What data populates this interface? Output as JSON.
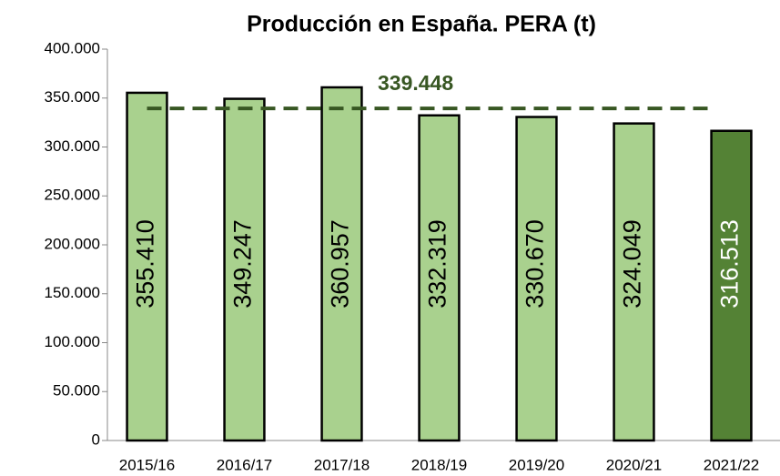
{
  "chart_data": {
    "type": "bar",
    "title": "Producción en España. PERA (t)",
    "categories": [
      "2015/16",
      "2016/17",
      "2017/18",
      "2018/19",
      "2019/20",
      "2020/21",
      "2021/22"
    ],
    "values": [
      355410,
      349247,
      360957,
      332319,
      330670,
      324049,
      316513
    ],
    "value_labels": [
      "355.410",
      "349.247",
      "360.957",
      "332.319",
      "330.670",
      "324.049",
      "316.513"
    ],
    "colors": [
      "#a9d18e",
      "#a9d18e",
      "#a9d18e",
      "#a9d18e",
      "#a9d18e",
      "#a9d18e",
      "#548235"
    ],
    "label_colors": [
      "#000000",
      "#000000",
      "#000000",
      "#000000",
      "#000000",
      "#000000",
      "#ffffff"
    ],
    "average": {
      "value": 339448,
      "label": "339.448",
      "color": "#385723"
    },
    "ylim": [
      0,
      400000
    ],
    "yticks": [
      0,
      {
        "value": 50000,
        "label": "50.000"
      },
      {
        "value": 100000,
        "label": "100.000"
      },
      {
        "value": 150000,
        "label": "150.000"
      },
      {
        "value": 200000,
        "label": "200.000"
      },
      {
        "value": 250000,
        "label": "250.000"
      },
      {
        "value": 300000,
        "label": "300.000"
      },
      {
        "value": 350000,
        "label": "350.000"
      },
      {
        "value": 400000,
        "label": "400.000"
      }
    ],
    "grid": false
  }
}
